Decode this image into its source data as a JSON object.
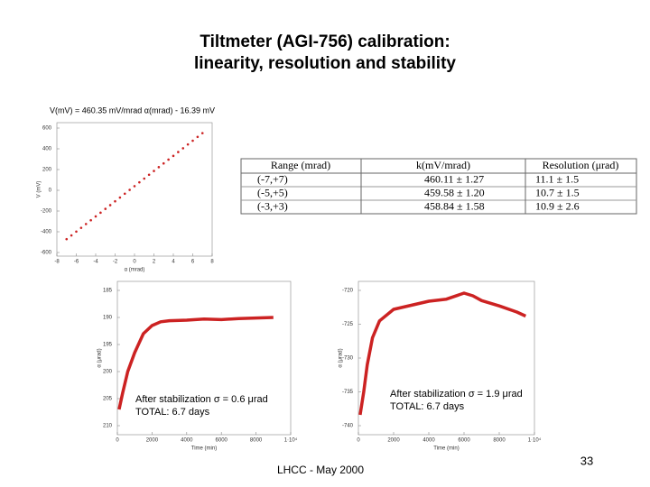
{
  "title": [
    "Tiltmeter (AGI-756) calibration:",
    "linearity, resolution and stability"
  ],
  "table": {
    "header": [
      "Range (mrad)",
      "k(mV/mrad)",
      "Resolution (μrad)"
    ],
    "rows": [
      [
        "(-7,+7)",
        "460.11 ± 1.27",
        "11.1 ± 1.5"
      ],
      [
        "(-5,+5)",
        "459.58 ± 1.20",
        "10.7 ± 1.5"
      ],
      [
        "(-3,+3)",
        "458.84 ± 1.58",
        "10.9 ± 2.6"
      ]
    ]
  },
  "footer": "LHCC - May 2000",
  "page_number": "33",
  "chart_data": [
    {
      "type": "scatter",
      "annotation": "V(mV) = 460.35 mV/mrad α(mrad) - 16.39 mV",
      "x_label": "α (mrad)",
      "y_label": "V (mV)",
      "x": [
        -7,
        -6.5,
        -6,
        -5.5,
        -5,
        -4.5,
        -4,
        -3.5,
        -3,
        -2.5,
        -2,
        -1.5,
        -1,
        -0.5,
        0,
        0.5,
        1,
        1.5,
        2,
        2.5,
        3,
        3.5,
        4,
        4.5,
        5,
        5.5,
        6,
        6.5,
        7
      ],
      "values": [
        -471,
        -435,
        -398,
        -362,
        -325,
        -289,
        -252,
        -216,
        -179,
        -143,
        -106,
        -70,
        -33,
        4,
        40,
        77,
        113,
        150,
        186,
        223,
        259,
        296,
        332,
        369,
        405,
        442,
        478,
        515,
        551
      ],
      "color": "#cc2222",
      "xlim": [
        -8,
        8
      ],
      "xticks": [
        -8,
        -6,
        -4,
        -2,
        0,
        2,
        4,
        6,
        8
      ],
      "ylim": [
        -600,
        600
      ],
      "yticks": [
        600,
        400,
        200,
        0,
        -200,
        -400,
        -600
      ]
    },
    {
      "type": "line",
      "annotation": [
        "After stabilization σ = 0.6 μrad",
        "TOTAL: 6.7 days"
      ],
      "x_label": "Time (min)",
      "y_label": "α (μrad)",
      "x": [
        100,
        300,
        600,
        1000,
        1500,
        2000,
        2500,
        3000,
        4000,
        5000,
        6000,
        7000,
        8000,
        9000
      ],
      "values": [
        207,
        204,
        200,
        196.5,
        193,
        191.5,
        190.8,
        190.6,
        190.5,
        190.3,
        190.4,
        190.2,
        190.1,
        190
      ],
      "color": "#cc2222",
      "xlim": [
        0,
        10000
      ],
      "xticks": [
        0,
        2000,
        4000,
        6000,
        8000,
        {
          "value": 10000,
          "label": "1·10⁴"
        }
      ],
      "ylim": [
        210,
        185
      ],
      "yticks": [
        185,
        190,
        195,
        200,
        205,
        210
      ]
    },
    {
      "type": "line",
      "annotation": [
        "After stabilization σ = 1.9 μrad",
        "TOTAL: 6.7 days"
      ],
      "x_label": "Time (min)",
      "y_label": "α (μrad)",
      "x": [
        100,
        300,
        500,
        800,
        1200,
        2000,
        3000,
        4000,
        5000,
        6000,
        6500,
        7000,
        8000,
        9000,
        9500
      ],
      "values": [
        -738.4,
        -735,
        -731,
        -727,
        -724.5,
        -722.8,
        -722.2,
        -721.6,
        -721.3,
        -720.4,
        -720.8,
        -721.5,
        -722.3,
        -723.2,
        -723.8
      ],
      "color": "#cc2222",
      "xlim": [
        0,
        10000
      ],
      "xticks": [
        0,
        2000,
        4000,
        6000,
        8000,
        {
          "value": 10000,
          "label": "1·10⁴"
        }
      ],
      "ylim": [
        -740,
        -720
      ],
      "yticks": [
        -720,
        -725,
        -730,
        -735,
        -740
      ]
    }
  ]
}
